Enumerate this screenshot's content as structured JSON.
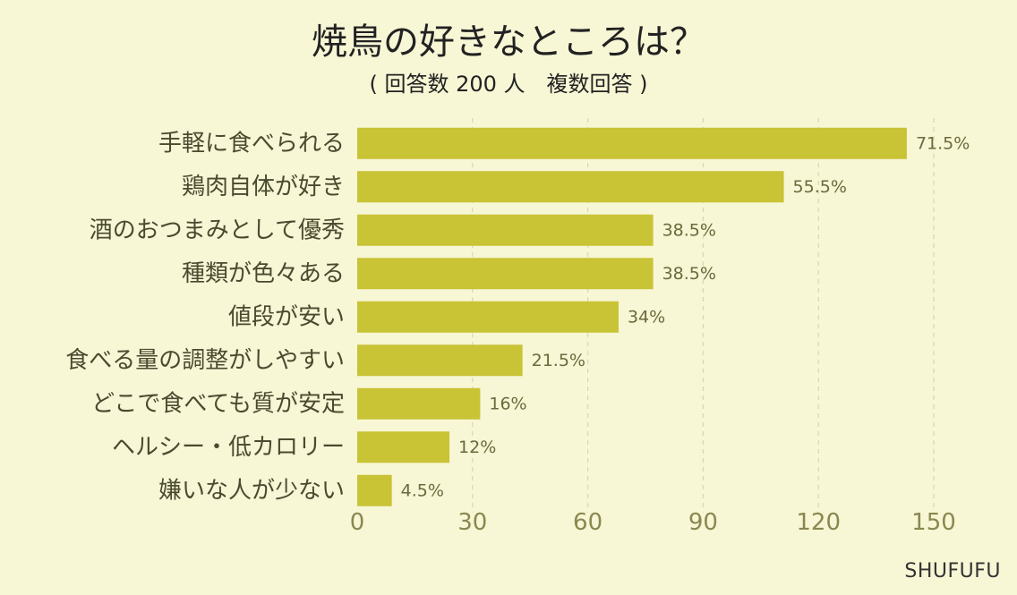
{
  "title": "焼鳥の好きなところは？",
  "subtitle": "( 回答数 200 人　複数回答 )",
  "credit": "SHUFUFU",
  "colors": {
    "bar": "#c9c336",
    "background": "#f7f6d5",
    "grid": "#d8d6b4"
  },
  "chart_data": {
    "type": "bar",
    "orientation": "horizontal",
    "categories": [
      "手軽に食べられる",
      "鶏肉自体が好き",
      "酒のおつまみとして優秀",
      "種類が色々ある",
      "値段が安い",
      "食べる量の調整がしやすい",
      "どこで食べても質が安定",
      "ヘルシー・低カロリー",
      "嫌いな人が少ない"
    ],
    "values": [
      143,
      111,
      77,
      77,
      68,
      43,
      32,
      24,
      9
    ],
    "value_labels": [
      "71.5%",
      "55.5%",
      "38.5%",
      "38.5%",
      "34%",
      "21.5%",
      "16%",
      "12%",
      "4.5%"
    ],
    "xlim": [
      0,
      150
    ],
    "xticks": [
      "0",
      "30",
      "60",
      "90",
      "120",
      "150"
    ],
    "grid": true
  }
}
